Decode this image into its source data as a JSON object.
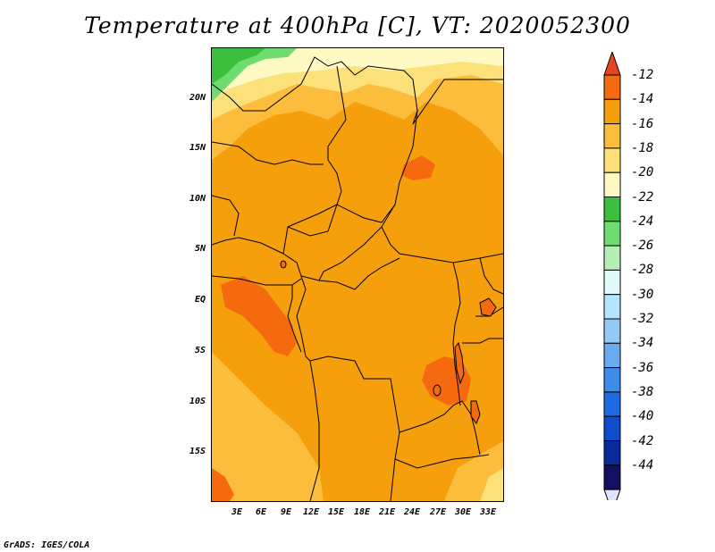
{
  "title": "Temperature at 400hPa [C], VT: 2020052300",
  "credit": "GrADS: IGES/COLA",
  "y_axis_labels": [
    "20N",
    "15N",
    "10N",
    "5N",
    "EQ",
    "5S",
    "10S",
    "15S"
  ],
  "x_axis_labels": [
    "3E",
    "6E",
    "9E",
    "12E",
    "15E",
    "18E",
    "21E",
    "24E",
    "27E",
    "30E",
    "33E"
  ],
  "colorbar": {
    "labels": [
      "-12",
      "-14",
      "-16",
      "-18",
      "-20",
      "-22",
      "-24",
      "-26",
      "-28",
      "-30",
      "-32",
      "-34",
      "-36",
      "-38",
      "-40",
      "-42",
      "-44"
    ],
    "colors": [
      "#e5451f",
      "#f56a0e",
      "#f59f0d",
      "#fbbd3b",
      "#fce17b",
      "#fff9c4",
      "#3cbf3c",
      "#6fdc6f",
      "#b5efb5",
      "#e1fbfb",
      "#b5e5fb",
      "#93c9f5",
      "#6aabef",
      "#3d8cea",
      "#1e6ae0",
      "#0e4dcc",
      "#0a2a9a",
      "#121060",
      "#e2e2ff"
    ]
  }
}
